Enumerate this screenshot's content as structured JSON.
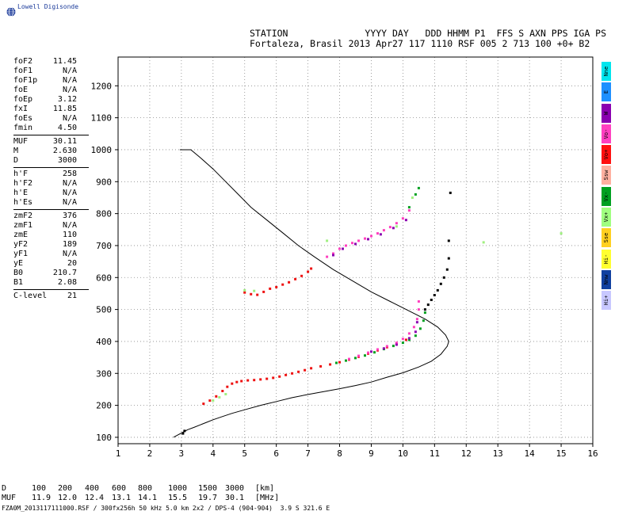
{
  "brand": {
    "name": "Lowell Digisonde",
    "logo_icon": "globe-icon"
  },
  "header": {
    "line1": "STATION              YYYY DAY   DDD HHMM P1  FFS S AXN PPS IGA PS",
    "line2": "Fortaleza, Brasil 2013 Apr27 117 1110 RSF 005 2 713 100 +0+ B2"
  },
  "parameters": [
    {
      "key": "foF2",
      "value": "11.45"
    },
    {
      "key": "foF1",
      "value": "N/A"
    },
    {
      "key": "foF1p",
      "value": "N/A"
    },
    {
      "key": "foE",
      "value": "N/A"
    },
    {
      "key": "foEp",
      "value": "3.12"
    },
    {
      "key": "fxI",
      "value": "11.85"
    },
    {
      "key": "foEs",
      "value": "N/A"
    },
    {
      "key": "fmin",
      "value": "4.50"
    },
    {
      "sep": true
    },
    {
      "key": "MUF",
      "value": "30.11"
    },
    {
      "key": "M",
      "value": "2.630"
    },
    {
      "key": "D",
      "value": "3000"
    },
    {
      "sep": true
    },
    {
      "key": "h'F",
      "value": "258"
    },
    {
      "key": "h'F2",
      "value": "N/A"
    },
    {
      "key": "h'E",
      "value": "N/A"
    },
    {
      "key": "h'Es",
      "value": "N/A"
    },
    {
      "sep": true
    },
    {
      "key": "zmF2",
      "value": "376"
    },
    {
      "key": "zmF1",
      "value": "N/A"
    },
    {
      "key": "zmE",
      "value": "110"
    },
    {
      "key": "yF2",
      "value": "189"
    },
    {
      "key": "yF1",
      "value": "N/A"
    },
    {
      "key": "yE",
      "value": "20"
    },
    {
      "key": "B0",
      "value": "210.7"
    },
    {
      "key": "B1",
      "value": "2.08"
    },
    {
      "sep": true
    },
    {
      "key": "C-level",
      "value": "21"
    }
  ],
  "legend": [
    {
      "label": "Nne",
      "color": "#00e5ee"
    },
    {
      "label": "E",
      "color": "#1e90ff"
    },
    {
      "label": "W",
      "color": "#8a00b0"
    },
    {
      "label": "Vo-",
      "color": "#ff40c0"
    },
    {
      "label": "Vo+",
      "color": "#ff1010"
    },
    {
      "label": "Ssw",
      "color": "#ffb0a0"
    },
    {
      "label": "Vx-",
      "color": "#00a020"
    },
    {
      "label": "Vx+",
      "color": "#a0ff80"
    },
    {
      "label": "Sse",
      "color": "#ffd020"
    },
    {
      "label": "Hi-",
      "color": "#ffff30"
    },
    {
      "label": "Nnw",
      "color": "#1040a0"
    },
    {
      "label": "Hi+",
      "color": "#c8c8ff"
    }
  ],
  "muf_table": {
    "d_label": "D",
    "muf_label": "MUF",
    "d_values": [
      "100",
      "200",
      "400",
      "600",
      "800",
      "1000",
      "1500",
      "3000"
    ],
    "muf_values": [
      "11.9",
      "12.0",
      "12.4",
      "13.1",
      "14.1",
      "15.5",
      "19.7",
      "30.1"
    ],
    "d_unit": "[km]",
    "muf_unit": "[MHz]"
  },
  "footer": "FZA0M_2013117111000.RSF / 300fx256h 50 kHz 5.0 km 2x2 / DPS-4 (904-904)  3.9 S 321.6 E",
  "chart_data": {
    "type": "scatter",
    "xlim": [
      1,
      16
    ],
    "ylim": [
      80,
      1290
    ],
    "x_ticks": [
      1,
      2,
      3,
      4,
      5,
      6,
      7,
      8,
      9,
      10,
      11,
      12,
      13,
      14,
      15,
      16
    ],
    "y_ticks": [
      100,
      200,
      300,
      400,
      500,
      600,
      700,
      800,
      900,
      1000,
      1100,
      1200
    ],
    "grid": true,
    "profile_line": [
      [
        2.75,
        100
      ],
      [
        2.9,
        108
      ],
      [
        3.05,
        116
      ],
      [
        3.2,
        124
      ],
      [
        3.4,
        131
      ],
      [
        3.6,
        139
      ],
      [
        3.8,
        147
      ],
      [
        4.0,
        155
      ],
      [
        4.3,
        165
      ],
      [
        4.6,
        175
      ],
      [
        5.0,
        186
      ],
      [
        5.5,
        200
      ],
      [
        6.0,
        212
      ],
      [
        6.5,
        224
      ],
      [
        7.0,
        234
      ],
      [
        7.5,
        243
      ],
      [
        8.0,
        252
      ],
      [
        8.5,
        262
      ],
      [
        9.0,
        273
      ],
      [
        9.5,
        288
      ],
      [
        10.0,
        302
      ],
      [
        10.5,
        320
      ],
      [
        10.9,
        338
      ],
      [
        11.2,
        360
      ],
      [
        11.4,
        385
      ],
      [
        11.45,
        400
      ],
      [
        11.35,
        420
      ],
      [
        11.1,
        445
      ],
      [
        10.7,
        470
      ],
      [
        10.2,
        495
      ],
      [
        9.6,
        525
      ],
      [
        9.0,
        555
      ],
      [
        8.4,
        590
      ],
      [
        7.8,
        625
      ],
      [
        7.2,
        665
      ],
      [
        6.7,
        700
      ],
      [
        6.2,
        740
      ],
      [
        5.7,
        780
      ],
      [
        5.2,
        820
      ],
      [
        4.8,
        860
      ],
      [
        4.4,
        900
      ],
      [
        4.0,
        940
      ],
      [
        3.6,
        975
      ],
      [
        3.3,
        1000
      ],
      [
        2.95,
        1000
      ]
    ],
    "series": [
      {
        "name": "Vo+",
        "color": "#ee1010",
        "points": [
          [
            3.7,
            205
          ],
          [
            3.9,
            215
          ],
          [
            4.1,
            228
          ],
          [
            4.3,
            245
          ],
          [
            4.45,
            258
          ],
          [
            4.6,
            268
          ],
          [
            4.75,
            273
          ],
          [
            4.9,
            276
          ],
          [
            5.1,
            278
          ],
          [
            5.3,
            279
          ],
          [
            5.5,
            281
          ],
          [
            5.7,
            283
          ],
          [
            5.9,
            286
          ],
          [
            6.1,
            290
          ],
          [
            6.3,
            295
          ],
          [
            6.5,
            300
          ],
          [
            6.7,
            305
          ],
          [
            6.9,
            310
          ],
          [
            7.1,
            316
          ],
          [
            7.4,
            322
          ],
          [
            7.7,
            328
          ],
          [
            8.0,
            335
          ],
          [
            8.3,
            343
          ],
          [
            8.6,
            352
          ],
          [
            8.9,
            362
          ],
          [
            9.2,
            372
          ],
          [
            9.5,
            382
          ],
          [
            9.8,
            392
          ],
          [
            10.1,
            405
          ],
          [
            5.0,
            553
          ],
          [
            5.2,
            548
          ],
          [
            5.4,
            546
          ],
          [
            5.6,
            555
          ],
          [
            5.8,
            565
          ],
          [
            6.0,
            570
          ],
          [
            6.2,
            578
          ],
          [
            6.4,
            585
          ],
          [
            6.6,
            595
          ],
          [
            6.8,
            605
          ],
          [
            7.0,
            618
          ],
          [
            7.1,
            628
          ]
        ]
      },
      {
        "name": "Vo-",
        "color": "#ff3fbf",
        "points": [
          [
            7.6,
            665
          ],
          [
            7.8,
            675
          ],
          [
            8.0,
            690
          ],
          [
            8.2,
            700
          ],
          [
            8.4,
            708
          ],
          [
            8.6,
            715
          ],
          [
            8.8,
            722
          ],
          [
            9.0,
            730
          ],
          [
            9.2,
            738
          ],
          [
            9.4,
            748
          ],
          [
            9.6,
            758
          ],
          [
            9.8,
            770
          ],
          [
            10.0,
            785
          ],
          [
            10.2,
            810
          ],
          [
            8.3,
            345
          ],
          [
            8.6,
            355
          ],
          [
            8.9,
            365
          ],
          [
            9.2,
            375
          ],
          [
            9.5,
            385
          ],
          [
            9.8,
            396
          ],
          [
            10.0,
            408
          ],
          [
            10.2,
            425
          ],
          [
            10.35,
            445
          ],
          [
            10.45,
            470
          ],
          [
            10.5,
            500
          ],
          [
            10.5,
            525
          ]
        ]
      },
      {
        "name": "Vx-",
        "color": "#00a020",
        "points": [
          [
            7.9,
            333
          ],
          [
            8.2,
            340
          ],
          [
            8.5,
            348
          ],
          [
            8.8,
            356
          ],
          [
            9.1,
            366
          ],
          [
            9.4,
            376
          ],
          [
            9.7,
            386
          ],
          [
            10.0,
            396
          ],
          [
            10.2,
            405
          ],
          [
            10.4,
            418
          ],
          [
            10.55,
            440
          ],
          [
            10.65,
            465
          ],
          [
            10.7,
            490
          ],
          [
            10.2,
            820
          ],
          [
            10.4,
            860
          ],
          [
            10.5,
            880
          ]
        ]
      },
      {
        "name": "Vx+",
        "color": "#a0f080",
        "points": [
          [
            4.0,
            215
          ],
          [
            4.2,
            225
          ],
          [
            4.4,
            235
          ],
          [
            5.0,
            560
          ],
          [
            5.3,
            558
          ],
          [
            7.6,
            715
          ],
          [
            12.55,
            710
          ],
          [
            15.0,
            738
          ],
          [
            9.8,
            760
          ],
          [
            10.3,
            850
          ]
        ]
      },
      {
        "name": "W",
        "color": "#8a00b0",
        "points": [
          [
            7.8,
            670
          ],
          [
            8.1,
            690
          ],
          [
            8.5,
            705
          ],
          [
            8.9,
            720
          ],
          [
            9.3,
            735
          ],
          [
            9.7,
            755
          ],
          [
            10.1,
            780
          ],
          [
            9.0,
            368
          ],
          [
            9.4,
            378
          ],
          [
            9.8,
            390
          ],
          [
            10.2,
            410
          ],
          [
            10.4,
            430
          ],
          [
            10.45,
            460
          ]
        ]
      },
      {
        "name": "Nne",
        "color": "#000000",
        "points": [
          [
            10.7,
            500
          ],
          [
            10.8,
            515
          ],
          [
            10.9,
            530
          ],
          [
            11.0,
            545
          ],
          [
            11.1,
            560
          ],
          [
            11.2,
            580
          ],
          [
            11.3,
            600
          ],
          [
            11.4,
            625
          ],
          [
            11.45,
            660
          ],
          [
            11.45,
            715
          ],
          [
            11.5,
            865
          ],
          [
            3.05,
            112
          ],
          [
            3.1,
            120
          ]
        ]
      }
    ]
  }
}
